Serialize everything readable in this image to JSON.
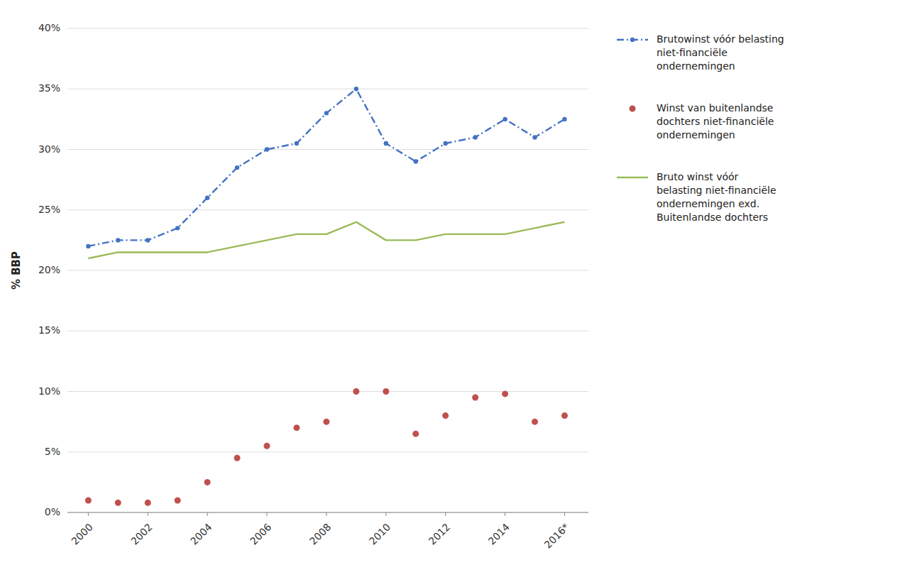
{
  "chart_data": {
    "type": "line",
    "ylabel": "% BBP",
    "x": [
      2000,
      2001,
      2002,
      2003,
      2004,
      2005,
      2006,
      2007,
      2008,
      2009,
      2010,
      2011,
      2012,
      2013,
      2014,
      2015,
      2016
    ],
    "xlim": [
      1999.3,
      2016.8
    ],
    "xticks": [
      2000,
      2002,
      2004,
      2006,
      2008,
      2010,
      2012,
      2014,
      {
        "value": 2016,
        "label": "2016*"
      }
    ],
    "ylim": [
      0,
      40
    ],
    "yticks": [
      {
        "value": 0,
        "label": "0%"
      },
      {
        "value": 5,
        "label": "5%"
      },
      {
        "value": 10,
        "label": "10%"
      },
      {
        "value": 15,
        "label": "15%"
      },
      {
        "value": 20,
        "label": "20%"
      },
      {
        "value": 25,
        "label": "25%"
      },
      {
        "value": 30,
        "label": "30%"
      },
      {
        "value": 35,
        "label": "35%"
      },
      {
        "value": 40,
        "label": "40%"
      }
    ],
    "grid": true,
    "legend": "right",
    "series": [
      {
        "name": "Brutowinst vóór belasting\nniet-financiële\nondernemingen",
        "color": "#4472C4",
        "line_style": "dashdot",
        "marker": "circle",
        "values": [
          22.0,
          22.5,
          22.5,
          23.5,
          26.0,
          28.5,
          30.0,
          30.5,
          33.0,
          35.0,
          30.5,
          29.0,
          30.5,
          31.0,
          32.5,
          31.0,
          32.5
        ]
      },
      {
        "name": "Winst van buitenlandse\ndochters niet-financiële\nondernemingen",
        "color": "#C0504D",
        "line_style": "none",
        "marker": "circle",
        "values": [
          1.0,
          0.8,
          0.8,
          1.0,
          2.5,
          4.5,
          5.5,
          7.0,
          7.5,
          10.0,
          10.0,
          6.5,
          8.0,
          9.5,
          9.8,
          7.5,
          8.0
        ]
      },
      {
        "name": "Bruto winst vóór\nbelasting niet-financiële\nondernemingen exd.\nBuitenlandse dochters",
        "color": "#9BBB59",
        "line_style": "solid",
        "marker": "none",
        "values": [
          21.0,
          21.5,
          21.5,
          21.5,
          21.5,
          22.0,
          22.5,
          23.0,
          23.0,
          24.0,
          22.5,
          22.5,
          23.0,
          23.0,
          23.0,
          23.5,
          24.0
        ]
      }
    ]
  }
}
